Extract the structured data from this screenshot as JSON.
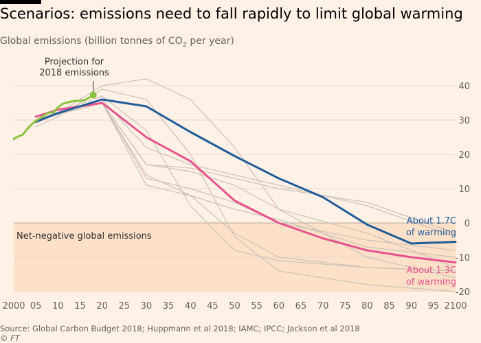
{
  "chart_data": {
    "type": "line",
    "title": "Scenarios: emissions need to fall rapidly to limit global warming",
    "subtitle_parts": [
      "Global emissions (billion tonnes of CO",
      "2",
      " per year)"
    ],
    "xlim": [
      2000,
      2100
    ],
    "ylim": [
      -20,
      42
    ],
    "x_ticks": [
      2000,
      2005,
      2010,
      2015,
      2020,
      2025,
      2030,
      2035,
      2040,
      2045,
      2050,
      2055,
      2060,
      2065,
      2070,
      2075,
      2080,
      2085,
      2090,
      2095,
      2100
    ],
    "x_tick_labels": [
      "2000",
      "05",
      "10",
      "15",
      "20",
      "25",
      "30",
      "35",
      "40",
      "45",
      "50",
      "55",
      "60",
      "65",
      "70",
      "75",
      "80",
      "85",
      "90",
      "95",
      "2100"
    ],
    "y_ticks": [
      40,
      30,
      20,
      10,
      0,
      -10,
      -20
    ],
    "y_tick_labels": [
      "40",
      "30",
      "20",
      "10",
      "0",
      "-10",
      "-20"
    ],
    "grid": true,
    "region": {
      "label": "Net-negative global emissions",
      "y_from": -20,
      "y_to": 0
    },
    "historical": {
      "x": [
        2000,
        2001,
        2002,
        2003,
        2004,
        2005,
        2006,
        2007,
        2008,
        2009,
        2010,
        2011,
        2012,
        2013,
        2014,
        2015,
        2016,
        2017,
        2018
      ],
      "y": [
        24.5,
        25.2,
        25.7,
        27.3,
        28.7,
        29.8,
        30.6,
        31.5,
        32.2,
        32.2,
        33.7,
        34.7,
        35.1,
        35.4,
        35.6,
        35.6,
        35.8,
        36.5,
        37.3
      ]
    },
    "projection_label": [
      "Projection for",
      "2018 emissions"
    ],
    "projection_point": {
      "x": 2018,
      "y": 37.3
    },
    "series": [
      {
        "name": "About 1.7C of warming",
        "label_lines": [
          "About 1.7C",
          "of warming"
        ],
        "color": "#1f5c99",
        "x": [
          2005,
          2010,
          2020,
          2030,
          2040,
          2050,
          2060,
          2070,
          2080,
          2090,
          2100
        ],
        "y": [
          29.5,
          32.0,
          36.0,
          34.0,
          26.5,
          19.5,
          13.0,
          7.5,
          -0.5,
          -6.0,
          -5.5
        ]
      },
      {
        "name": "About 1.3C of warming",
        "label_lines": [
          "About 1.3C",
          "of warming"
        ],
        "color": "#e8528f",
        "x": [
          2005,
          2010,
          2020,
          2030,
          2040,
          2050,
          2060,
          2070,
          2080,
          2090,
          2100
        ],
        "y": [
          31.0,
          33.0,
          35.0,
          25.0,
          18.0,
          6.5,
          0.0,
          -4.5,
          -8.0,
          -10.0,
          -11.5
        ]
      }
    ],
    "background_scenarios": [
      {
        "x": [
          2005,
          2010,
          2020,
          2030,
          2040,
          2050,
          2060,
          2080,
          2100
        ],
        "y": [
          29,
          32,
          40,
          42,
          36,
          22,
          4,
          -10,
          -16
        ]
      },
      {
        "x": [
          2005,
          2010,
          2020,
          2030,
          2040,
          2050,
          2060,
          2080,
          2100
        ],
        "y": [
          28,
          31,
          39,
          36,
          20,
          -4,
          -14,
          -18,
          -20
        ]
      },
      {
        "x": [
          2005,
          2020,
          2030,
          2040,
          2050,
          2060,
          2080,
          2100
        ],
        "y": [
          30,
          37,
          27,
          5,
          -8,
          -11,
          -13,
          -14
        ]
      },
      {
        "x": [
          2005,
          2020,
          2030,
          2040,
          2050,
          2060,
          2080,
          2100
        ],
        "y": [
          30,
          36,
          22,
          17,
          14,
          11,
          5,
          -4
        ]
      },
      {
        "x": [
          2005,
          2020,
          2030,
          2040,
          2050,
          2060,
          2080,
          2100
        ],
        "y": [
          30,
          35,
          17,
          16,
          13,
          10,
          6,
          -3
        ]
      },
      {
        "x": [
          2005,
          2020,
          2030,
          2040,
          2050,
          2060,
          2080,
          2100
        ],
        "y": [
          30,
          35,
          17,
          15,
          11,
          4,
          -3,
          -13
        ]
      },
      {
        "x": [
          2005,
          2020,
          2030,
          2040,
          2050,
          2060,
          2080,
          2100
        ],
        "y": [
          30,
          35,
          13,
          10,
          6,
          0,
          -5,
          -8
        ]
      },
      {
        "x": [
          2005,
          2020,
          2030,
          2040,
          2050,
          2060,
          2080,
          2100
        ],
        "y": [
          30,
          35,
          11,
          8,
          4,
          1,
          -7,
          -10
        ]
      },
      {
        "x": [
          2005,
          2020,
          2030,
          2040,
          2050,
          2060,
          2080,
          2100
        ],
        "y": [
          30,
          35,
          14,
          8,
          -3,
          -10,
          -13,
          -14
        ]
      }
    ],
    "colors": {
      "background": "#fff1e5",
      "region": "#fce0c8",
      "grid": "#e6d9ce",
      "zero_line": "#b3a9a0",
      "scenario": "#ccc1b7",
      "historical": "#8cc13f",
      "text": "#33302e",
      "muted": "#66605c"
    }
  },
  "footer": {
    "source": "Source: Global Carbon Budget 2018; Huppmann et al 2018; IAMC; IPCC; Jackson et al 2018",
    "credit": "© FT"
  }
}
